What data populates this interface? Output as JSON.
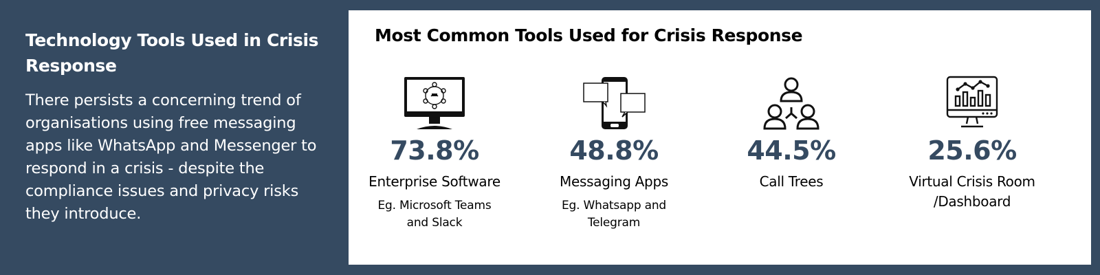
{
  "intro": {
    "title": "Technology Tools Used in Crisis Response",
    "body": "There persists a concerning trend of organisations using free messaging apps like WhatsApp and Messenger to respond in a crisis - despite the compliance issues and privacy risks they introduce."
  },
  "card": {
    "title": "Most Common Tools Used for Crisis Response",
    "stats": [
      {
        "icon": "monitor-network-icon",
        "value": "73.8%",
        "label": "Enterprise Software",
        "example_lines": [
          "Eg. Microsoft Teams",
          "and Slack"
        ]
      },
      {
        "icon": "smartphone-chat-icon",
        "value": "48.8%",
        "label": "Messaging Apps",
        "example_lines": [
          "Eg. Whatsapp and",
          "Telegram"
        ]
      },
      {
        "icon": "people-tree-icon",
        "value": "44.5%",
        "label": "Call Trees",
        "example_lines": []
      },
      {
        "icon": "dashboard-monitor-icon",
        "value": "25.6%",
        "label_lines": [
          "Virtual Crisis Room",
          "/Dashboard"
        ],
        "example_lines": []
      }
    ]
  },
  "colors": {
    "background": "#354a61",
    "card": "#ffffff",
    "accent": "#354a61"
  }
}
